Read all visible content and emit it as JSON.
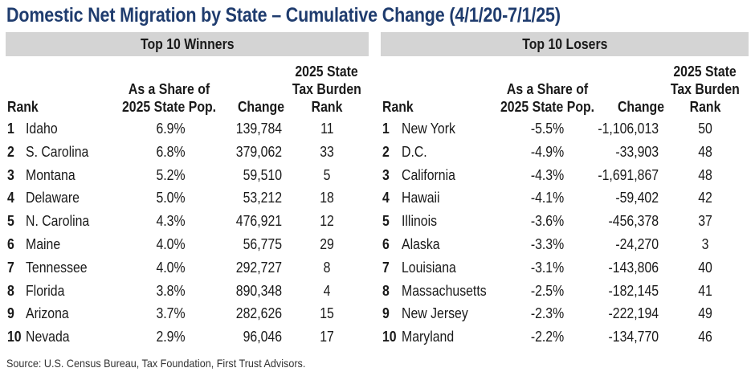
{
  "title": "Domestic Net Migration by State – Cumulative Change (4/1/20-7/1/25)",
  "columns": {
    "rank": "Rank",
    "share_line1": "As a Share of",
    "share_line2": "2025 State Pop.",
    "change": "Change",
    "tax_line1": "2025 State",
    "tax_line2": "Tax Burden",
    "tax_line3": "Rank"
  },
  "winners": {
    "title": "Top 10 Winners",
    "rows": [
      {
        "rank": "1",
        "state": "Idaho",
        "share": "6.9%",
        "change": "139,784",
        "tax": "11"
      },
      {
        "rank": "2",
        "state": "S. Carolina",
        "share": "6.8%",
        "change": "379,062",
        "tax": "33"
      },
      {
        "rank": "3",
        "state": "Montana",
        "share": "5.2%",
        "change": "59,510",
        "tax": "5"
      },
      {
        "rank": "4",
        "state": "Delaware",
        "share": "5.0%",
        "change": "53,212",
        "tax": "18"
      },
      {
        "rank": "5",
        "state": "N. Carolina",
        "share": "4.3%",
        "change": "476,921",
        "tax": "12"
      },
      {
        "rank": "6",
        "state": "Maine",
        "share": "4.0%",
        "change": "56,775",
        "tax": "29"
      },
      {
        "rank": "7",
        "state": "Tennessee",
        "share": "4.0%",
        "change": "292,727",
        "tax": "8"
      },
      {
        "rank": "8",
        "state": "Florida",
        "share": "3.8%",
        "change": "890,348",
        "tax": "4"
      },
      {
        "rank": "9",
        "state": "Arizona",
        "share": "3.7%",
        "change": "282,626",
        "tax": "15"
      },
      {
        "rank": "10",
        "state": "Nevada",
        "share": "2.9%",
        "change": "96,046",
        "tax": "17"
      }
    ]
  },
  "losers": {
    "title": "Top 10 Losers",
    "rows": [
      {
        "rank": "1",
        "state": "New York",
        "share": "-5.5%",
        "change": "-1,106,013",
        "tax": "50"
      },
      {
        "rank": "2",
        "state": "D.C.",
        "share": "-4.9%",
        "change": "-33,903",
        "tax": "48"
      },
      {
        "rank": "3",
        "state": "California",
        "share": "-4.3%",
        "change": "-1,691,867",
        "tax": "48"
      },
      {
        "rank": "4",
        "state": "Hawaii",
        "share": "-4.1%",
        "change": "-59,402",
        "tax": "42"
      },
      {
        "rank": "5",
        "state": "Illinois",
        "share": "-3.6%",
        "change": "-456,378",
        "tax": "37"
      },
      {
        "rank": "6",
        "state": "Alaska",
        "share": "-3.3%",
        "change": "-24,270",
        "tax": "3"
      },
      {
        "rank": "7",
        "state": "Louisiana",
        "share": "-3.1%",
        "change": "-143,806",
        "tax": "40"
      },
      {
        "rank": "8",
        "state": "Massachusetts",
        "share": "-2.5%",
        "change": "-182,145",
        "tax": "41"
      },
      {
        "rank": "9",
        "state": "New Jersey",
        "share": "-2.3%",
        "change": "-222,194",
        "tax": "49"
      },
      {
        "rank": "10",
        "state": "Maryland",
        "share": "-2.2%",
        "change": "-134,770",
        "tax": "46"
      }
    ]
  },
  "source": "Source: U.S. Census Bureau, Tax Foundation, First Trust Advisors.",
  "colors": {
    "title": "#1f3c6e",
    "header_bg": "#d4d4d4"
  }
}
